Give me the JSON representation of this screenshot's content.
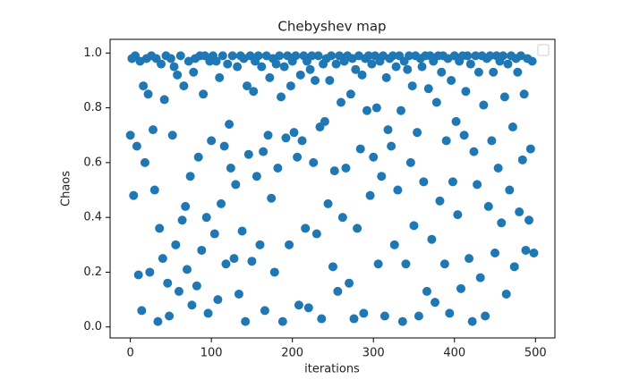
{
  "chart_data": {
    "type": "scatter",
    "title": "Chebyshev map",
    "xlabel": "iterations",
    "ylabel": "Chaos",
    "color": "#1f77b4",
    "legend": "upper right",
    "xlim": [
      -25,
      524
    ],
    "ylim": [
      -0.04,
      1.05
    ],
    "xticks": [
      0,
      100,
      200,
      300,
      400,
      500
    ],
    "yticks": [
      {
        "value": 0,
        "label": "0.0"
      },
      0.2,
      0.4,
      0.6,
      0.8,
      {
        "value": 1,
        "label": "1.0"
      }
    ],
    "x": [
      0,
      2,
      4,
      6,
      8,
      10,
      12,
      14,
      16,
      18,
      20,
      22,
      24,
      26,
      28,
      30,
      32,
      34,
      36,
      38,
      40,
      42,
      44,
      46,
      48,
      50,
      52,
      54,
      56,
      58,
      60,
      62,
      64,
      66,
      68,
      70,
      72,
      74,
      76,
      78,
      80,
      82,
      84,
      86,
      88,
      90,
      92,
      94,
      96,
      98,
      100,
      102,
      104,
      106,
      108,
      110,
      112,
      114,
      116,
      118,
      120,
      122,
      124,
      126,
      128,
      130,
      132,
      134,
      136,
      138,
      140,
      142,
      144,
      146,
      148,
      150,
      152,
      154,
      156,
      158,
      160,
      162,
      164,
      166,
      168,
      170,
      172,
      174,
      176,
      178,
      180,
      182,
      184,
      186,
      188,
      190,
      192,
      194,
      196,
      198,
      200,
      202,
      204,
      206,
      208,
      210,
      212,
      214,
      216,
      218,
      220,
      222,
      224,
      226,
      228,
      230,
      232,
      234,
      236,
      238,
      240,
      242,
      244,
      246,
      248,
      250,
      252,
      254,
      256,
      258,
      260,
      262,
      264,
      266,
      268,
      270,
      272,
      274,
      276,
      278,
      280,
      282,
      284,
      286,
      288,
      290,
      292,
      294,
      296,
      298,
      300,
      302,
      304,
      306,
      308,
      310,
      312,
      314,
      316,
      318,
      320,
      322,
      324,
      326,
      328,
      330,
      332,
      334,
      336,
      338,
      340,
      342,
      344,
      346,
      348,
      350,
      352,
      354,
      356,
      358,
      360,
      362,
      364,
      366,
      368,
      370,
      372,
      374,
      376,
      378,
      380,
      382,
      384,
      386,
      388,
      390,
      392,
      394,
      396,
      398,
      400,
      402,
      404,
      406,
      408,
      410,
      412,
      414,
      416,
      418,
      420,
      422,
      424,
      426,
      428,
      430,
      432,
      434,
      436,
      438,
      440,
      442,
      444,
      446,
      448,
      450,
      452,
      454,
      456,
      458,
      460,
      462,
      464,
      466,
      468,
      470,
      472,
      474,
      476,
      478,
      480,
      482,
      484,
      486,
      488,
      490,
      492,
      494,
      496,
      498
    ],
    "values": [
      0.7,
      0.98,
      0.48,
      0.99,
      0.66,
      0.19,
      0.97,
      0.06,
      0.88,
      0.6,
      0.98,
      0.85,
      0.2,
      0.99,
      0.72,
      0.5,
      0.98,
      0.02,
      0.36,
      0.96,
      0.25,
      0.83,
      0.99,
      0.16,
      0.04,
      0.98,
      0.7,
      0.95,
      0.3,
      0.92,
      0.13,
      0.99,
      0.39,
      0.88,
      0.44,
      0.21,
      0.97,
      0.55,
      0.08,
      0.93,
      0.98,
      0.15,
      0.62,
      0.99,
      0.28,
      0.85,
      0.99,
      0.4,
      0.05,
      0.97,
      0.68,
      0.99,
      0.34,
      0.97,
      0.1,
      0.91,
      0.45,
      0.99,
      0.66,
      0.23,
      0.96,
      0.74,
      0.58,
      0.99,
      0.25,
      0.52,
      0.95,
      0.12,
      0.99,
      0.35,
      0.98,
      0.02,
      0.88,
      0.63,
      0.99,
      0.24,
      0.86,
      0.97,
      0.55,
      0.99,
      0.3,
      0.95,
      0.64,
      0.06,
      0.99,
      0.7,
      0.91,
      0.47,
      0.98,
      0.2,
      0.96,
      0.58,
      0.99,
      0.84,
      0.02,
      0.95,
      0.69,
      0.99,
      0.3,
      0.88,
      0.97,
      0.71,
      0.99,
      0.62,
      0.08,
      0.92,
      0.68,
      0.99,
      0.36,
      0.97,
      0.07,
      0.94,
      0.99,
      0.6,
      0.9,
      0.34,
      0.99,
      0.73,
      0.03,
      0.96,
      0.75,
      0.98,
      0.45,
      0.9,
      0.99,
      0.22,
      0.57,
      0.96,
      0.13,
      0.99,
      0.82,
      0.4,
      0.97,
      0.58,
      0.99,
      0.16,
      0.85,
      0.98,
      0.03,
      0.94,
      0.36,
      0.99,
      0.65,
      0.92,
      0.05,
      0.98,
      0.79,
      0.99,
      0.48,
      0.96,
      0.62,
      0.99,
      0.8,
      0.23,
      0.97,
      0.55,
      0.99,
      0.04,
      0.91,
      0.72,
      0.98,
      0.66,
      0.99,
      0.3,
      0.95,
      0.5,
      0.99,
      0.79,
      0.02,
      0.97,
      0.23,
      0.94,
      0.99,
      0.6,
      0.88,
      0.37,
      0.99,
      0.71,
      0.04,
      0.98,
      0.95,
      0.53,
      0.99,
      0.13,
      0.87,
      0.99,
      0.32,
      0.97,
      0.09,
      0.82,
      0.99,
      0.46,
      0.93,
      0.99,
      0.23,
      0.68,
      0.98,
      0.05,
      0.9,
      0.53,
      0.99,
      0.75,
      0.41,
      0.97,
      0.14,
      0.99,
      0.7,
      0.86,
      0.99,
      0.25,
      0.96,
      0.02,
      0.64,
      0.99,
      0.52,
      0.93,
      0.18,
      0.99,
      0.81,
      0.04,
      0.98,
      0.44,
      0.99,
      0.68,
      0.93,
      0.27,
      0.99,
      0.58,
      0.97,
      0.38,
      0.99,
      0.84,
      0.12,
      0.96,
      0.5,
      0.99,
      0.73,
      0.22,
      0.98,
      0.93,
      0.42,
      0.99,
      0.61,
      0.85,
      0.28,
      0.98,
      0.39,
      0.65,
      0.97,
      0.27
    ]
  }
}
